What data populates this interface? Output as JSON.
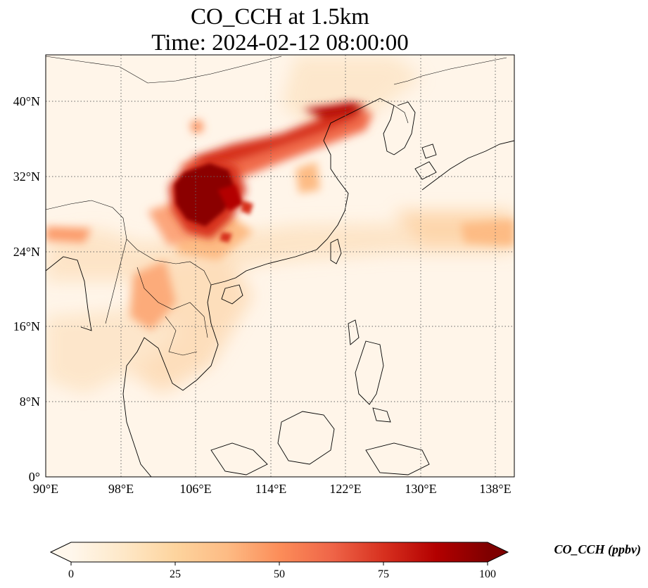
{
  "title": {
    "line1": "CO_CCH at 1.5km",
    "line2": "Time: 2024-02-12 08:00:00"
  },
  "map": {
    "variable": "CO_CCH",
    "level": "1.5km",
    "time": "2024-02-12 08:00:00",
    "extent": {
      "lon": [
        90,
        140
      ],
      "lat": [
        0,
        45
      ]
    },
    "gridlines": "dotted",
    "x_ticks": [
      {
        "value": 90,
        "label": "90°E"
      },
      {
        "value": 98,
        "label": "98°E"
      },
      {
        "value": 106,
        "label": "106°E"
      },
      {
        "value": 114,
        "label": "114°E"
      },
      {
        "value": 122,
        "label": "122°E"
      },
      {
        "value": 130,
        "label": "130°E"
      },
      {
        "value": 138,
        "label": "138°E"
      }
    ],
    "y_ticks": [
      {
        "value": 0,
        "label": "0°"
      },
      {
        "value": 8,
        "label": "8°N"
      },
      {
        "value": 16,
        "label": "16°N"
      },
      {
        "value": 24,
        "label": "24°N"
      },
      {
        "value": 32,
        "label": "32°N"
      },
      {
        "value": 40,
        "label": "40°N"
      }
    ]
  },
  "colorbar": {
    "label": "CO_CCH (ppbv)",
    "colormap": "OrRd",
    "min": 0,
    "max": 100,
    "extend": "both",
    "ticks": [
      {
        "value": 0,
        "label": "0"
      },
      {
        "value": 25,
        "label": "25"
      },
      {
        "value": 50,
        "label": "50"
      },
      {
        "value": 75,
        "label": "75"
      },
      {
        "value": 100,
        "label": "100"
      }
    ],
    "colors": [
      "#fff7ec",
      "#fee8c8",
      "#fdd49e",
      "#fdbb84",
      "#fc8d59",
      "#ef6548",
      "#d7301f",
      "#b30000",
      "#7f0000"
    ]
  }
}
